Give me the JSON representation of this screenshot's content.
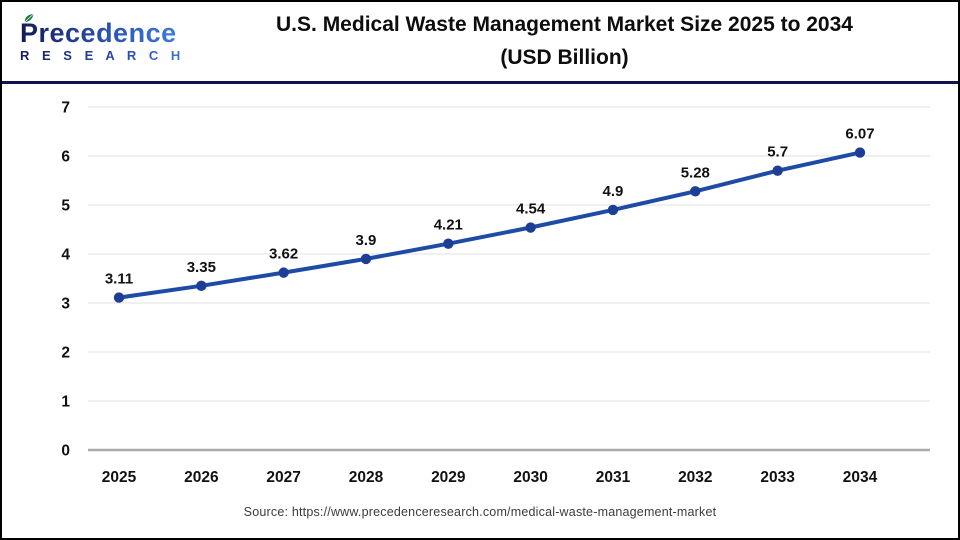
{
  "header": {
    "logo": {
      "name": "Precedence",
      "subname": "R E S E A R C H"
    },
    "title_line1": "U.S. Medical Waste Management Market Size 2025 to 2034",
    "title_line2": "(USD Billion)"
  },
  "chart_data": {
    "type": "line",
    "title": "U.S. Medical Waste Management Market Size 2025 to 2034 (USD Billion)",
    "categories": [
      "2025",
      "2026",
      "2027",
      "2028",
      "2029",
      "2030",
      "2031",
      "2032",
      "2033",
      "2034"
    ],
    "series": [
      {
        "name": "U.S. Medical Waste Management Market Size (USD Billion)",
        "values": [
          3.11,
          3.35,
          3.62,
          3.9,
          4.21,
          4.54,
          4.9,
          5.28,
          5.7,
          6.07
        ]
      }
    ],
    "data_labels": [
      "3.11",
      "3.35",
      "3.62",
      "3.9",
      "4.21",
      "4.54",
      "4.9",
      "5.28",
      "5.7",
      "6.07"
    ],
    "xlabel": "",
    "ylabel": "",
    "ylim": [
      0,
      7
    ],
    "yticks": [
      0,
      1,
      2,
      3,
      4,
      5,
      6,
      7
    ],
    "grid": true,
    "legend": "none",
    "line_color": "#1e4ba6",
    "marker_color": "#1c3f95",
    "gridline_color": "#ececec",
    "baseline_color": "#ababab",
    "tick_label_color": "#111111",
    "data_label_color": "#111111"
  },
  "footer": {
    "source": "Source: https://www.precedenceresearch.com/medical-waste-management-market"
  }
}
